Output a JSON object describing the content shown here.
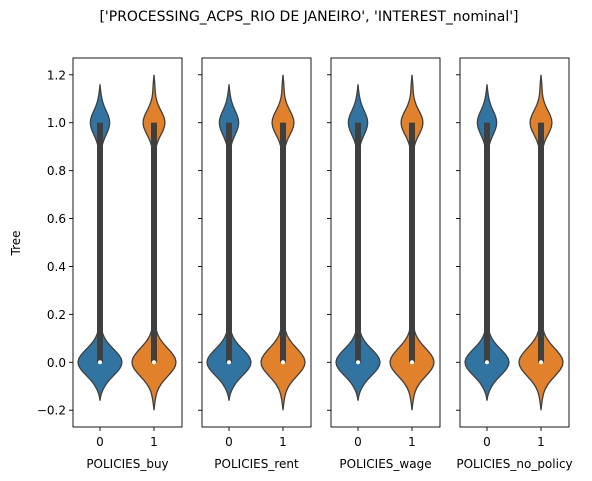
{
  "chart_data": {
    "type": "violin",
    "title": "['PROCESSING_ACPS_RIO DE JANEIRO', 'INTEREST_nominal']",
    "ylabel": "Tree",
    "ylim": [
      -0.27,
      1.27
    ],
    "yticks": [
      -0.2,
      0.0,
      0.2,
      0.4,
      0.6,
      0.8,
      1.0,
      1.2
    ],
    "ytick_labels": [
      "−0.2",
      "0.0",
      "0.2",
      "0.4",
      "0.6",
      "0.8",
      "1.0",
      "1.2"
    ],
    "categories": [
      "0",
      "1"
    ],
    "series_colors": {
      "0": "#3274a1",
      "1": "#e1812c"
    },
    "panels": [
      {
        "xlabel": "POLICIES_buy",
        "violins": [
          {
            "category": "0",
            "median": 0.0,
            "q1": 0.0,
            "q3": 1.0,
            "kde_min": -0.16,
            "kde_max": 1.16,
            "lower_mode_width": 1.0,
            "upper_mode_width": 0.42
          },
          {
            "category": "1",
            "median": 0.0,
            "q1": 0.0,
            "q3": 1.0,
            "kde_min": -0.2,
            "kde_max": 1.2,
            "lower_mode_width": 0.84,
            "upper_mode_width": 0.4
          }
        ]
      },
      {
        "xlabel": "POLICIES_rent",
        "violins": [
          {
            "category": "0",
            "median": 0.0,
            "q1": 0.0,
            "q3": 1.0,
            "kde_min": -0.16,
            "kde_max": 1.16,
            "lower_mode_width": 1.0,
            "upper_mode_width": 0.42
          },
          {
            "category": "1",
            "median": 0.0,
            "q1": 0.0,
            "q3": 1.0,
            "kde_min": -0.2,
            "kde_max": 1.2,
            "lower_mode_width": 0.84,
            "upper_mode_width": 0.4
          }
        ]
      },
      {
        "xlabel": "POLICIES_wage",
        "violins": [
          {
            "category": "0",
            "median": 0.0,
            "q1": 0.0,
            "q3": 1.0,
            "kde_min": -0.16,
            "kde_max": 1.16,
            "lower_mode_width": 1.0,
            "upper_mode_width": 0.42
          },
          {
            "category": "1",
            "median": 0.0,
            "q1": 0.0,
            "q3": 1.0,
            "kde_min": -0.2,
            "kde_max": 1.2,
            "lower_mode_width": 0.84,
            "upper_mode_width": 0.4
          }
        ]
      },
      {
        "xlabel": "POLICIES_no_policy",
        "violins": [
          {
            "category": "0",
            "median": 0.0,
            "q1": 0.0,
            "q3": 1.0,
            "kde_min": -0.16,
            "kde_max": 1.16,
            "lower_mode_width": 1.0,
            "upper_mode_width": 0.42
          },
          {
            "category": "1",
            "median": 0.0,
            "q1": 0.0,
            "q3": 1.0,
            "kde_min": -0.2,
            "kde_max": 1.2,
            "lower_mode_width": 0.84,
            "upper_mode_width": 0.4
          }
        ]
      }
    ]
  }
}
